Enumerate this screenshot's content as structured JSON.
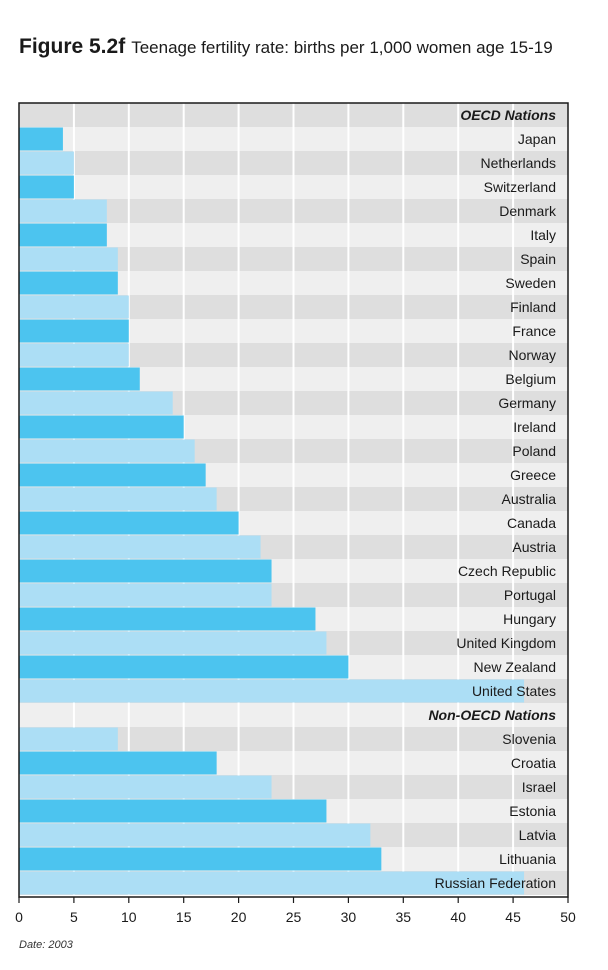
{
  "figure": {
    "label": "Figure 5.2f",
    "title": "Teenage fertility rate: births per 1,000 women age 15-19",
    "note": "Date: 2003"
  },
  "colors": {
    "bar_dark": "#4cc4ef",
    "bar_light": "#acdef5",
    "band_dark": "#dedede",
    "band_light": "#efefef",
    "grid": "#ffffff",
    "frame": "#1a1a1a"
  },
  "chart_data": {
    "type": "bar",
    "orientation": "horizontal",
    "title": "Teenage fertility rate: births per 1,000 women age 15-19",
    "xlim": [
      0,
      50
    ],
    "xticks": [
      0,
      5,
      10,
      15,
      20,
      25,
      30,
      35,
      40,
      45,
      50
    ],
    "grid": true,
    "groups": [
      {
        "label": "OECD Nations",
        "categories": [
          "Japan",
          "Netherlands",
          "Switzerland",
          "Denmark",
          "Italy",
          "Spain",
          "Sweden",
          "Finland",
          "France",
          "Norway",
          "Belgium",
          "Germany",
          "Ireland",
          "Poland",
          "Greece",
          "Australia",
          "Canada",
          "Austria",
          "Czech Republic",
          "Portugal",
          "Hungary",
          "United Kingdom",
          "New Zealand",
          "United States"
        ],
        "values": [
          4,
          5,
          5,
          8,
          8,
          9,
          9,
          10,
          10,
          10,
          11,
          14,
          15,
          16,
          17,
          18,
          20,
          22,
          23,
          23,
          27,
          28,
          30,
          46
        ]
      },
      {
        "label": "Non-OECD Nations",
        "categories": [
          "Slovenia",
          "Croatia",
          "Israel",
          "Estonia",
          "Latvia",
          "Lithuania",
          "Russian Federation"
        ],
        "values": [
          9,
          18,
          23,
          28,
          32,
          33,
          46
        ]
      }
    ]
  }
}
